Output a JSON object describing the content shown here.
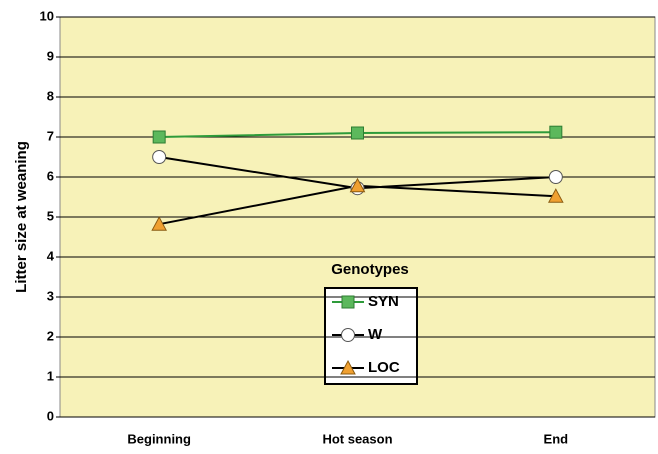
{
  "chart_data": {
    "type": "line",
    "y_label": "Litter size at weaning",
    "legend_title": "Genotypes",
    "categories": [
      "Beginning",
      "Hot season",
      "End"
    ],
    "series": [
      {
        "name": "SYN",
        "color": "#2e9b3a",
        "marker": "square",
        "values": [
          7.0,
          7.1,
          7.12
        ]
      },
      {
        "name": "W",
        "color": "#000000",
        "marker": "circle",
        "values": [
          6.5,
          5.72,
          6.0
        ]
      },
      {
        "name": "LOC",
        "color": "#000000",
        "marker": "triangle",
        "values": [
          4.82,
          5.78,
          5.52
        ]
      }
    ],
    "ylim": [
      0,
      10
    ],
    "yticks": [
      0,
      1,
      2,
      3,
      4,
      5,
      6,
      7,
      8,
      9,
      10
    ],
    "grid": true
  }
}
